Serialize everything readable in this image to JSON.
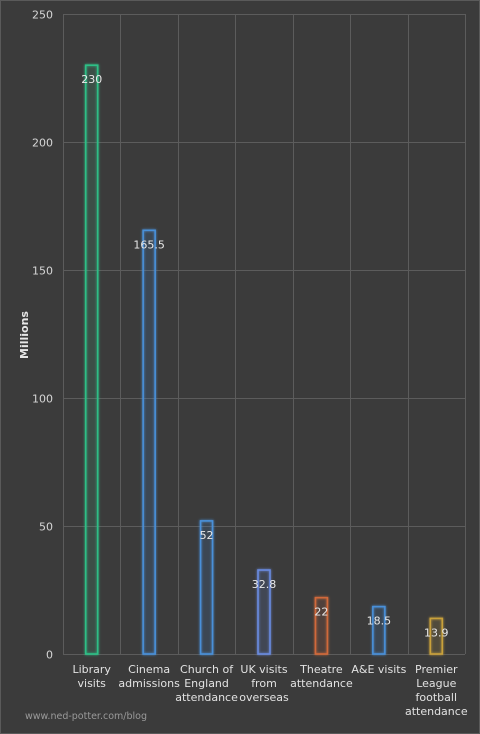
{
  "chart_data": {
    "type": "bar",
    "categories": [
      [
        "Library",
        "visits"
      ],
      [
        "Cinema",
        "admissions"
      ],
      [
        "Church of",
        "England",
        "attendance"
      ],
      [
        "UK visits",
        "from",
        "overseas"
      ],
      [
        "Theatre",
        "attendance"
      ],
      [
        "A&E visits"
      ],
      [
        "Premier",
        "League",
        "football",
        "attendance"
      ]
    ],
    "values": [
      230,
      165.5,
      52,
      32.8,
      22,
      18.5,
      13.9
    ],
    "data_labels": [
      "230",
      "165.5",
      "52",
      "32.8",
      "22",
      "18.5",
      "13.9"
    ],
    "bar_colors": [
      "#2fbf86",
      "#4a90d9",
      "#4a90d9",
      "#6a8be0",
      "#d1693a",
      "#4a90d9",
      "#c9a13b"
    ],
    "ylabel": "Millions",
    "ylim": [
      0,
      250
    ],
    "yticks": [
      0,
      50,
      100,
      150,
      200,
      250
    ],
    "grid": true,
    "legend": "none"
  },
  "credit": "www.ned-potter.com/blog"
}
